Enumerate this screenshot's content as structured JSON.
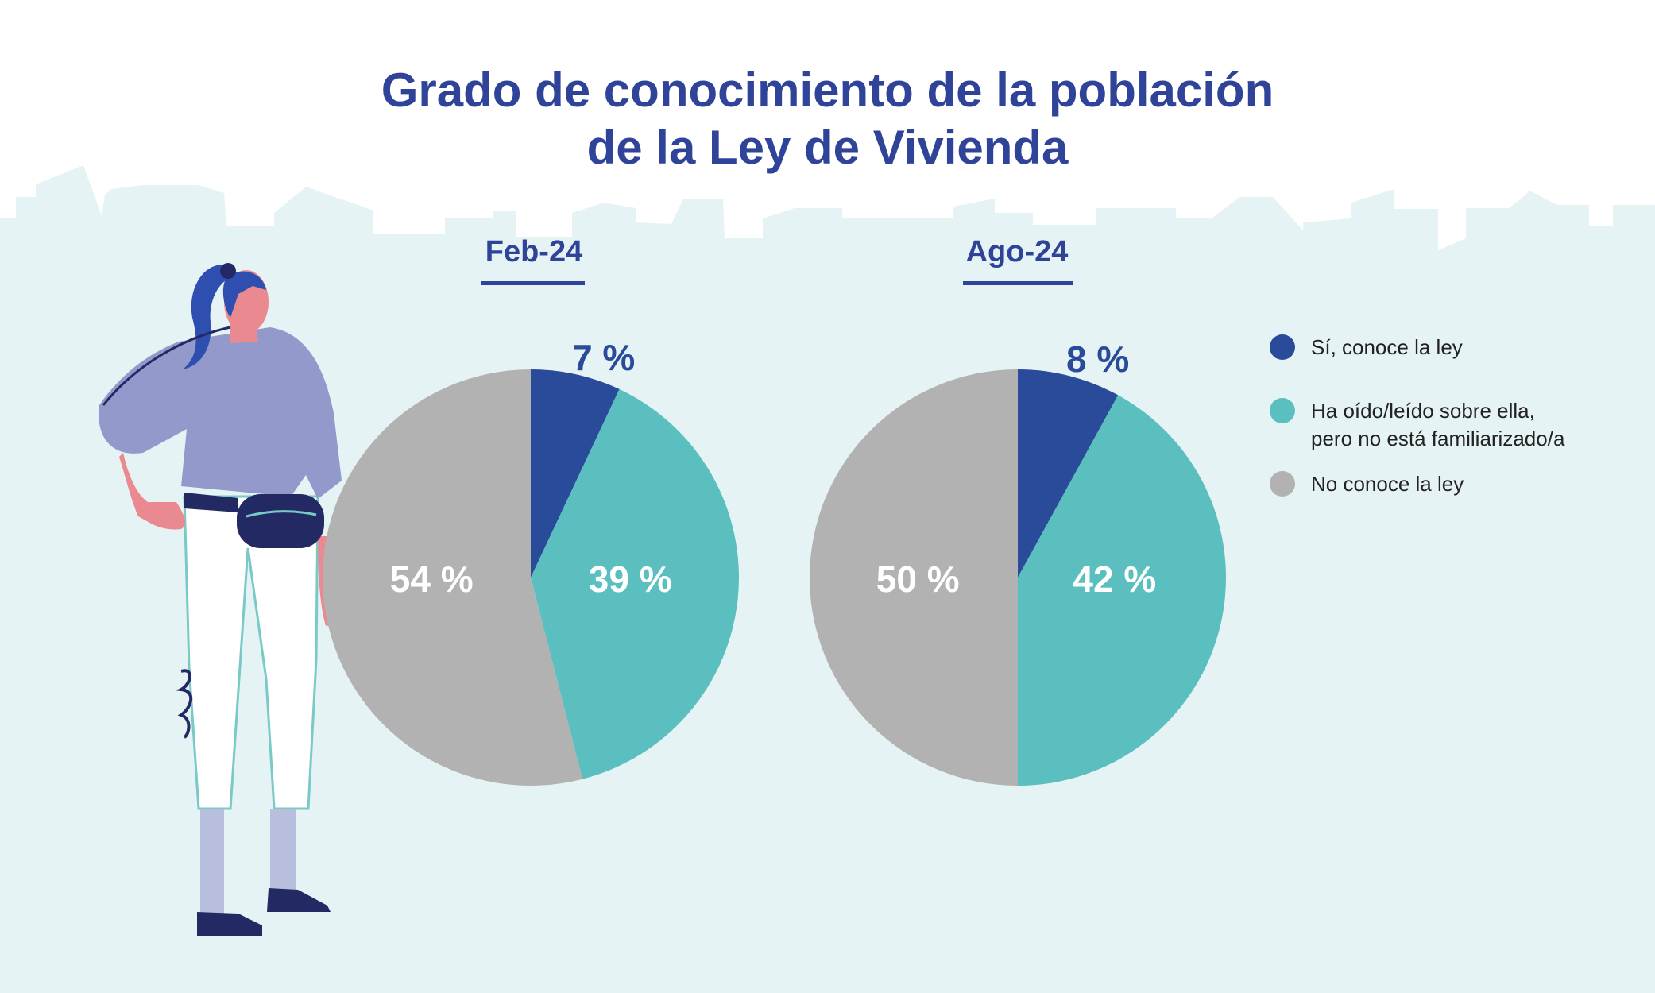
{
  "title": {
    "line1": "Grado de conocimiento de la población",
    "line2": "de la Ley de Vivienda"
  },
  "colors": {
    "si": "#2a4a9a",
    "oido": "#5bbfbf",
    "no": "#b2b2b2",
    "title": "#2f4499",
    "background_band": "#e6f3f4"
  },
  "legend": {
    "items": [
      {
        "lines": [
          "Sí, conoce la ley"
        ],
        "color": "#2a4a9a"
      },
      {
        "lines": [
          "Ha oído/leído sobre ella,",
          "pero no está familiarizado/a"
        ],
        "color": "#5bbfbf"
      },
      {
        "lines": [
          "No conoce la ley"
        ],
        "color": "#b2b2b2"
      }
    ]
  },
  "chart_data": [
    {
      "type": "pie",
      "title": "Feb-24",
      "categories": [
        "Sí, conoce la ley",
        "Ha oído/leído sobre ella, pero no está familiarizado/a",
        "No conoce la ley"
      ],
      "values": [
        7,
        39,
        54
      ],
      "labels": [
        "7 %",
        "39 %",
        "54 %"
      ],
      "colors": [
        "#2a4a9a",
        "#5bbfbf",
        "#b2b2b2"
      ]
    },
    {
      "type": "pie",
      "title": "Ago-24",
      "categories": [
        "Sí, conoce la ley",
        "Ha oído/leído sobre ella, pero no está familiarizado/a",
        "No conoce la ley"
      ],
      "values": [
        8,
        42,
        50
      ],
      "labels": [
        "8 %",
        "42 %",
        "50 %"
      ],
      "colors": [
        "#2a4a9a",
        "#5bbfbf",
        "#b2b2b2"
      ]
    }
  ]
}
